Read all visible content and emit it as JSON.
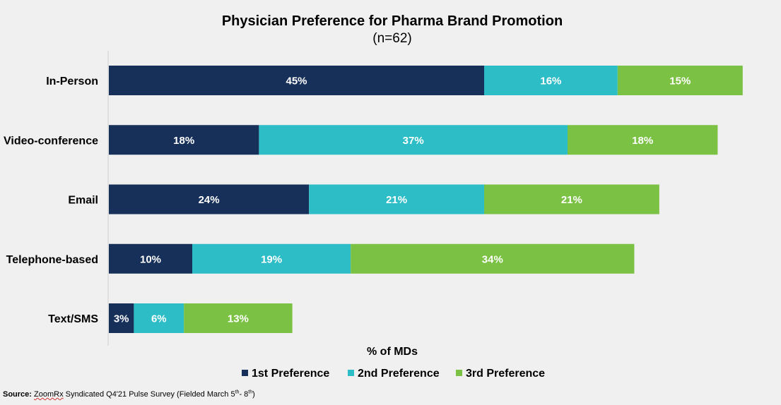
{
  "chart_data": {
    "type": "bar",
    "orientation": "horizontal",
    "stacked": true,
    "title": "Physician Preference for Pharma Brand Promotion",
    "subtitle": "(n=62)",
    "xlabel": "% of MDs",
    "ylabel": "",
    "categories": [
      "In-Person",
      "Video-conference",
      "Email",
      "Telephone-based",
      "Text/SMS"
    ],
    "series": [
      {
        "name": "1st Preference",
        "color": "#17305a",
        "values": [
          45,
          18,
          24,
          10,
          3
        ]
      },
      {
        "name": "2nd Preference",
        "color": "#2dbdc7",
        "values": [
          16,
          37,
          21,
          19,
          6
        ]
      },
      {
        "name": "3rd Preference",
        "color": "#7bc143",
        "values": [
          15,
          18,
          21,
          34,
          13
        ]
      }
    ],
    "value_suffix": "%",
    "grid": false,
    "legend_position": "bottom"
  },
  "source": {
    "label": "Source:",
    "brand": "ZoomRx",
    "text_before": " Syndicated Q4'21 Pulse Survey (Fielded March 5",
    "sup1": "th",
    "text_mid": "- 8",
    "sup2": "th",
    "text_after": ")"
  }
}
